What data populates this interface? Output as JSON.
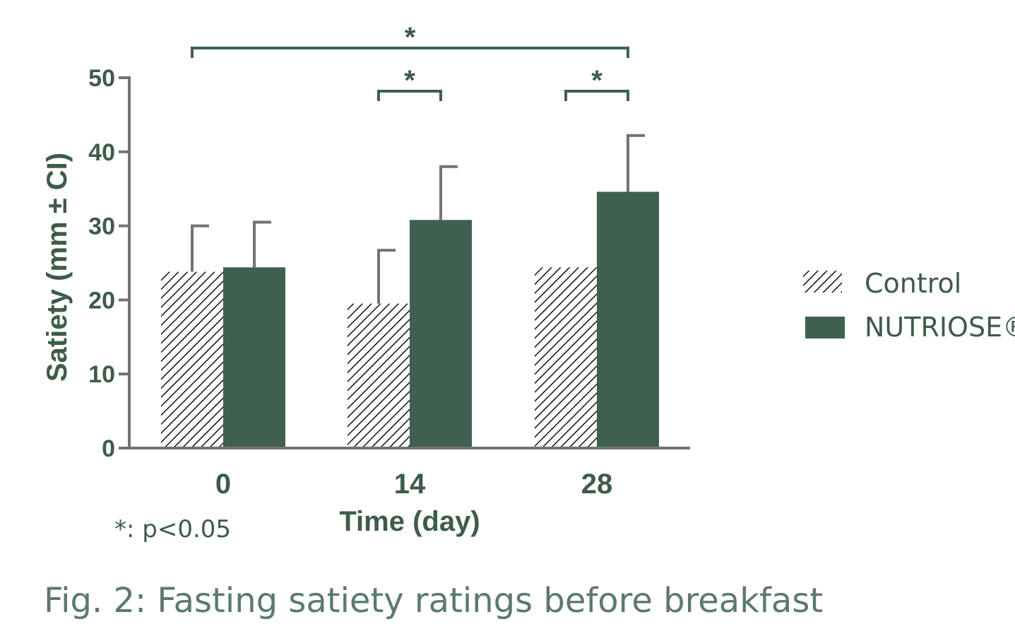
{
  "chart_data": {
    "type": "bar",
    "title": "",
    "xlabel": "Time (day)",
    "ylabel": "Satiety (mm ± CI)",
    "categories": [
      "0",
      "14",
      "28"
    ],
    "ylim": [
      0,
      50
    ],
    "yticks": [
      "0",
      "10",
      "20",
      "30",
      "40",
      "50"
    ],
    "grid": false,
    "legend_position": "right",
    "series": [
      {
        "name": "Control",
        "values": [
          23.8,
          19.5,
          24.4
        ],
        "ci_upper": [
          30.0,
          26.7,
          null
        ],
        "style": "hatched",
        "color": "#111111"
      },
      {
        "name": "NUTRIOSE®",
        "values": [
          24.4,
          30.8,
          34.6
        ],
        "ci_upper": [
          30.5,
          38.0,
          42.2
        ],
        "style": "solid",
        "color": "#3f6050"
      }
    ],
    "significance": [
      {
        "label": "*",
        "from": {
          "category": "0",
          "series": "Control"
        },
        "to": {
          "category": "28",
          "series": "NUTRIOSE®"
        }
      },
      {
        "label": "*",
        "from": {
          "category": "14",
          "series": "Control"
        },
        "to": {
          "category": "14",
          "series": "NUTRIOSE®"
        }
      },
      {
        "label": "*",
        "from": {
          "category": "28",
          "series": "Control"
        },
        "to": {
          "category": "28",
          "series": "NUTRIOSE®"
        }
      }
    ],
    "note": "*: p<0.05",
    "caption": "Fig. 2: Fasting satiety ratings before breakfast",
    "error_bar_color": "#737373",
    "axis_color": "#737373"
  }
}
